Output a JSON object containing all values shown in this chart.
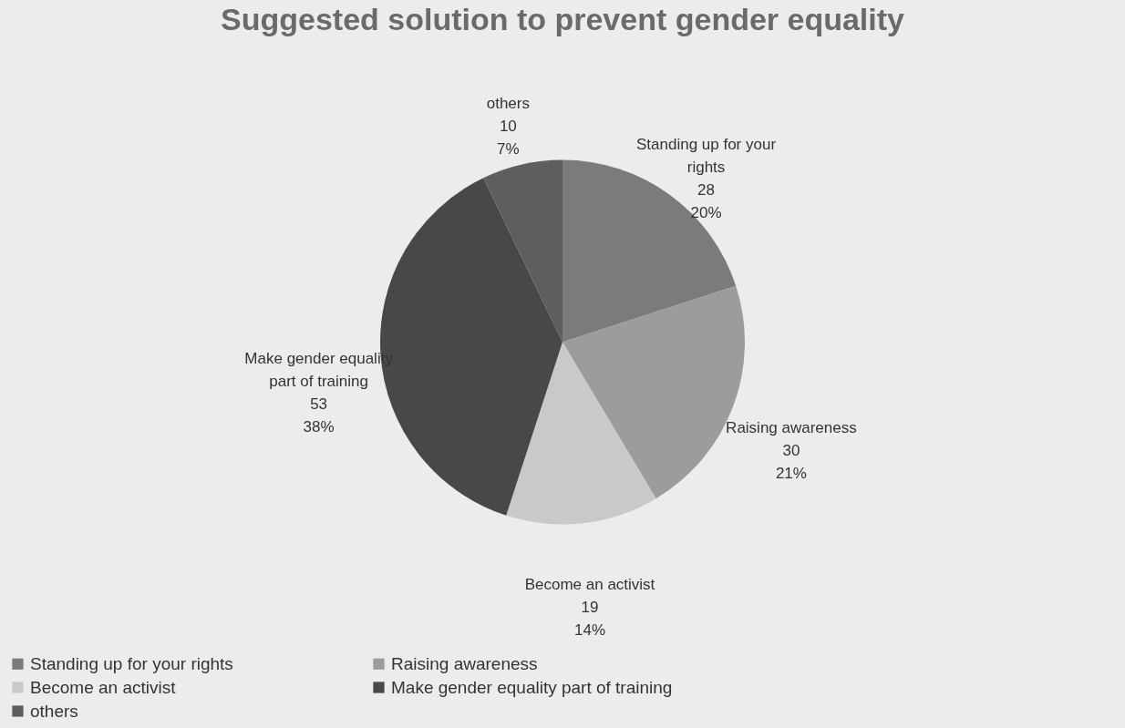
{
  "chart_data": {
    "type": "pie",
    "title": "Suggested solution to prevent gender equality",
    "categories": [
      "Standing up for your rights",
      "Raising awareness",
      "Become an activist",
      "Make gender equality part of training",
      "others"
    ],
    "values": [
      28,
      30,
      19,
      53,
      10
    ],
    "value_labels": [
      "28\n20%",
      "30\n21%",
      "19\n14%",
      "53\n38%",
      "10\n7%"
    ],
    "colors": [
      "#7b7b7b",
      "#9c9c9c",
      "#c9c9c9",
      "#484848",
      "#5e5e5e"
    ],
    "legend": "bottom"
  }
}
